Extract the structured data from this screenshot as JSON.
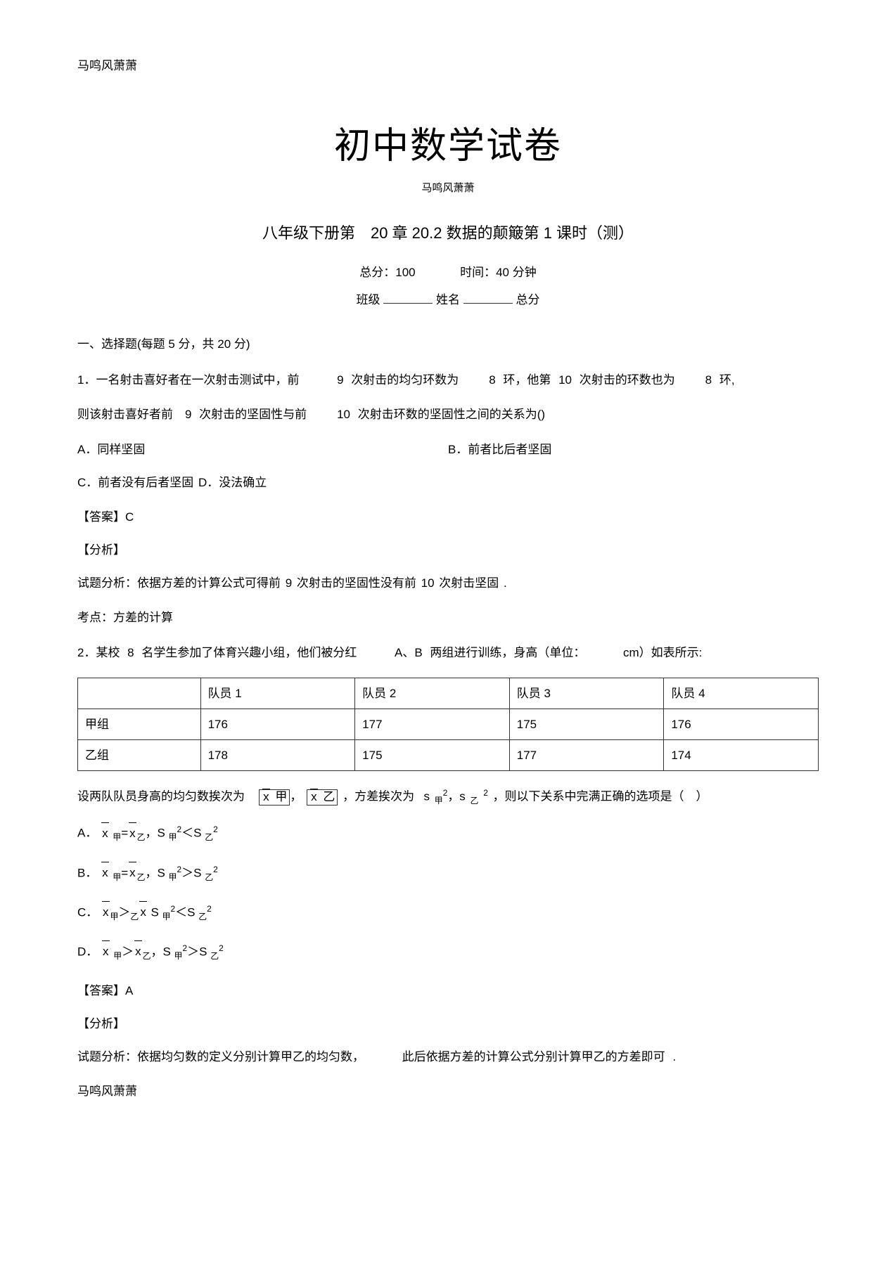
{
  "header": "马鸣风萧萧",
  "title": "初中数学试卷",
  "author": "马鸣风萧萧",
  "chapter": "八年级下册第　20 章 20.2 数据的颠簸第 1 课时（测）",
  "score_total_label": "总分：100",
  "score_time_label": "时间：40  分钟",
  "blank_class": "班级",
  "blank_name": "姓名",
  "blank_score": "总分",
  "sec1": "一、选择题(每题 5 分，共 20 分)",
  "q1_a": "1．一名射击喜好者在一次射击测试中，前",
  "q1_b": "9 次射击的均匀环数为",
  "q1_c": "8 环，他第 10 次射击的环数也为",
  "q1_d": "8 环,",
  "q1_e": "则该射击喜好者前　9 次射击的坚固性与前",
  "q1_f": "10 次射击环数的坚固性之间的关系为()",
  "q1_opt_a": "A．同样坚固",
  "q1_opt_b": "B．前者比后者坚固",
  "q1_opt_c": "C．前者没有后者坚固 D．没法确立",
  "ans_label": "【答案】",
  "q1_ans": "C",
  "analysis_label": "【分析】",
  "q1_analysis": "试题分析：依据方差的计算公式可得前 9 次射击的坚固性没有前 10 次射击坚固 .",
  "q1_kaodian": "考点：方差的计算",
  "q2_a": "2．某校 8 名学生参加了体育兴趣小组，他们被分红",
  "q2_b": "A、B 两组进行训练，身高（单位：",
  "q2_c": "cm）如表所示:",
  "table": {
    "headers": [
      "",
      "队员 1",
      "队员 2",
      "队员 3",
      "队员 4"
    ],
    "rows": [
      [
        "甲组",
        "176",
        "177",
        "175",
        "176"
      ],
      [
        "乙组",
        "178",
        "175",
        "177",
        "174"
      ]
    ]
  },
  "q2_d": "设两队队员身高的均匀数挨次为",
  "q2_box1": "x 甲",
  "q2_box2": "x 乙",
  "q2_e": "，方差挨次为",
  "q2_f": "，则以下关系中完满正确的选项是（　）",
  "q2_ans": "A",
  "q2_analysis_a": "试题分析：依据均匀数的定义分别计算甲乙的均匀数，",
  "q2_analysis_b": "此后依据方差的计算公式分别计算甲乙的方差即可 .",
  "footer": "马鸣风萧萧",
  "colors": {
    "text": "#000000",
    "bg": "#ffffff",
    "border": "#333333"
  }
}
